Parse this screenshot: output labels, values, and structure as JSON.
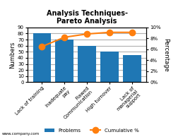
{
  "chart_data": {
    "type": "bar",
    "title": "Analysis Techniques-\nPareto Analysis",
    "categories": [
      "Lack of training",
      "Inadequate\npay",
      "Flawed\nCommunication",
      "High turnover",
      "Lack of\nmanagerial\nsupport"
    ],
    "series": [
      {
        "name": "Problems",
        "type": "bar",
        "values": [
          80,
          70,
          60,
          50,
          45
        ]
      },
      {
        "name": "Cumulative %",
        "type": "line",
        "marker": "o",
        "axis": "y2",
        "values": [
          6.5,
          8.2,
          8.8,
          9.1,
          9.1
        ]
      }
    ],
    "ylabel": "Numbers",
    "y2label": "Percentage",
    "ylim": [
      0,
      90
    ],
    "yticks": [
      0,
      10,
      20,
      30,
      40,
      50,
      60,
      70,
      80,
      90
    ],
    "y2lim": [
      0,
      10
    ],
    "y2ticks": [
      {
        "value": 0,
        "label": "0%"
      },
      {
        "value": 2,
        "label": "2%"
      },
      {
        "value": 4,
        "label": "4%"
      },
      {
        "value": 6,
        "label": "6%"
      },
      {
        "value": 8,
        "label": "8%"
      },
      {
        "value": 10,
        "label": "10%"
      }
    ],
    "grid": true,
    "legend": "lower center",
    "footer": "www.company.com"
  }
}
